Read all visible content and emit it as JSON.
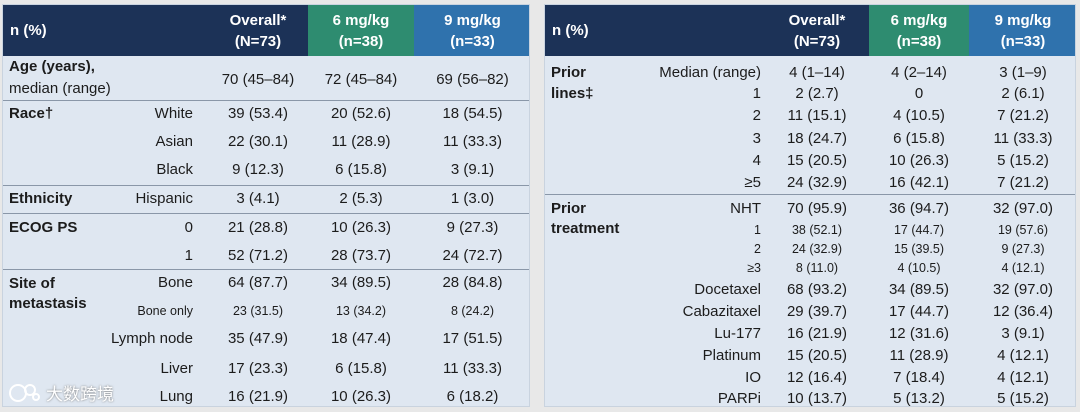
{
  "header": {
    "n_label": "n (%)",
    "overall": "Overall*",
    "overall_n": "(N=73)",
    "mg6": "6 mg/kg",
    "mg6_n": "(n=38)",
    "mg9": "9 mg/kg",
    "mg9_n": "(n=33)"
  },
  "left": {
    "age_title": "Age (years),",
    "age_sub": "median (range)",
    "age_values": [
      "70 (45–84)",
      "72 (45–84)",
      "69 (56–82)"
    ],
    "race_title": "Race†",
    "race": [
      {
        "label": "White",
        "v": [
          "39 (53.4)",
          "20 (52.6)",
          "18 (54.5)"
        ]
      },
      {
        "label": "Asian",
        "v": [
          "22 (30.1)",
          "11 (28.9)",
          "11 (33.3)"
        ]
      },
      {
        "label": "Black",
        "v": [
          "9 (12.3)",
          "6 (15.8)",
          "3 (9.1)"
        ]
      }
    ],
    "eth_title": "Ethnicity",
    "eth": {
      "label": "Hispanic",
      "v": [
        "3 (4.1)",
        "2 (5.3)",
        "1 (3.0)"
      ]
    },
    "ecog_title": "ECOG PS",
    "ecog": [
      {
        "label": "0",
        "v": [
          "21 (28.8)",
          "10 (26.3)",
          "9 (27.3)"
        ]
      },
      {
        "label": "1",
        "v": [
          "52 (71.2)",
          "28 (73.7)",
          "24 (72.7)"
        ]
      }
    ],
    "site_title1": "Site of",
    "site_title2": "metastasis",
    "site": [
      {
        "label": "Bone",
        "v": [
          "64 (87.7)",
          "34 (89.5)",
          "28 (84.8)"
        ]
      },
      {
        "label": "Bone only",
        "v": [
          "23 (31.5)",
          "13 (34.2)",
          "8 (24.2)"
        ]
      },
      {
        "label": "Lymph node",
        "v": [
          "35 (47.9)",
          "18 (47.4)",
          "17 (51.5)"
        ]
      },
      {
        "label": "Liver",
        "v": [
          "17 (23.3)",
          "6 (15.8)",
          "11 (33.3)"
        ]
      },
      {
        "label": "Lung",
        "v": [
          "16 (21.9)",
          "10 (26.3)",
          "6 (18.2)"
        ]
      }
    ]
  },
  "right": {
    "lines_title1": "Prior",
    "lines_title2": "lines‡",
    "lines": [
      {
        "label": "Median (range)",
        "v": [
          "4 (1–14)",
          "4 (2–14)",
          "3 (1–9)"
        ]
      },
      {
        "label": "1",
        "v": [
          "2 (2.7)",
          "0",
          "2 (6.1)"
        ]
      },
      {
        "label": "2",
        "v": [
          "11 (15.1)",
          "4 (10.5)",
          "7 (21.2)"
        ]
      },
      {
        "label": "3",
        "v": [
          "18 (24.7)",
          "6 (15.8)",
          "11 (33.3)"
        ]
      },
      {
        "label": "4",
        "v": [
          "15 (20.5)",
          "10 (26.3)",
          "5 (15.2)"
        ]
      },
      {
        "label": "≥5",
        "v": [
          "24 (32.9)",
          "16 (42.1)",
          "7 (21.2)"
        ]
      }
    ],
    "treat_title1": "Prior",
    "treat_title2": "treatment",
    "treat": [
      {
        "label": "NHT",
        "v": [
          "70 (95.9)",
          "36 (94.7)",
          "32 (97.0)"
        ]
      },
      {
        "label": "1",
        "v": [
          "38 (52.1)",
          "17 (44.7)",
          "19 (57.6)"
        ]
      },
      {
        "label": "2",
        "v": [
          "24 (32.9)",
          "15 (39.5)",
          "9 (27.3)"
        ]
      },
      {
        "label": "≥3",
        "v": [
          "8 (11.0)",
          "4 (10.5)",
          "4 (12.1)"
        ]
      },
      {
        "label": "Docetaxel",
        "v": [
          "68 (93.2)",
          "34 (89.5)",
          "32 (97.0)"
        ]
      },
      {
        "label": "Cabazitaxel",
        "v": [
          "29 (39.7)",
          "17 (44.7)",
          "12 (36.4)"
        ]
      },
      {
        "label": "Lu-177",
        "v": [
          "16 (21.9)",
          "12 (31.6)",
          "3 (9.1)"
        ]
      },
      {
        "label": "Platinum",
        "v": [
          "15 (20.5)",
          "11 (28.9)",
          "4 (12.1)"
        ]
      },
      {
        "label": "IO",
        "v": [
          "12 (16.4)",
          "7 (18.4)",
          "4 (12.1)"
        ]
      },
      {
        "label": "PARPi",
        "v": [
          "10 (13.7)",
          "5 (13.2)",
          "5 (15.2)"
        ]
      }
    ]
  },
  "watermark": "大数跨境"
}
